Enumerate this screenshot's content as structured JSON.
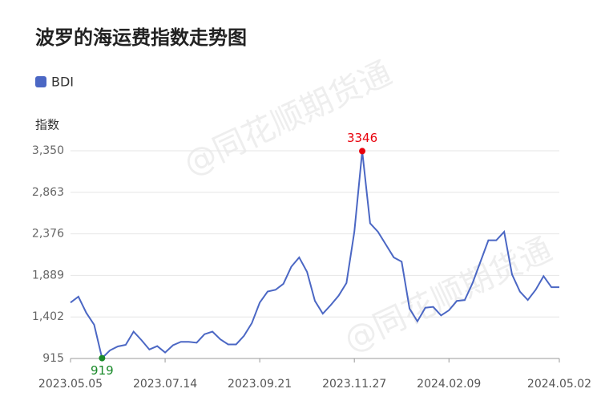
{
  "chart_data": {
    "type": "line",
    "title": "波罗的海运费指数走势图",
    "y_label": "指数",
    "watermark": "@同花顺期货通",
    "categories": [
      "2023.05.05",
      null,
      null,
      null,
      null,
      null,
      null,
      null,
      null,
      null,
      null,
      null,
      "2023.07.14",
      null,
      null,
      null,
      null,
      null,
      null,
      null,
      null,
      null,
      null,
      null,
      "2023.09.21",
      null,
      null,
      null,
      null,
      null,
      null,
      null,
      null,
      null,
      null,
      null,
      "2023.11.27",
      null,
      null,
      null,
      null,
      null,
      null,
      null,
      null,
      null,
      null,
      null,
      "2024.02.09",
      null,
      null,
      null,
      null,
      null,
      null,
      null,
      null,
      null,
      null,
      null,
      null,
      null,
      "2024.05.02"
    ],
    "series": [
      {
        "name": "BDI",
        "color": "#4b67c4",
        "values": [
          1570,
          1640,
          1450,
          1310,
          919,
          1010,
          1056,
          1075,
          1230,
          1130,
          1020,
          1060,
          985,
          1070,
          1110,
          1110,
          1100,
          1200,
          1230,
          1140,
          1080,
          1080,
          1180,
          1330,
          1570,
          1700,
          1720,
          1790,
          1990,
          2100,
          1930,
          1590,
          1440,
          1540,
          1650,
          1800,
          2400,
          3346,
          2500,
          2400,
          2250,
          2100,
          2050,
          1500,
          1350,
          1510,
          1520,
          1420,
          1480,
          1590,
          1600,
          1800,
          2050,
          2300,
          2300,
          2400,
          1900,
          1700,
          1600,
          1720,
          1880,
          1750,
          1750
        ]
      }
    ],
    "max_color": "#e8000b",
    "min_color": "#1a8a2a",
    "ylim": [
      915,
      3350
    ],
    "yticks": [
      915,
      {
        "value": 1402,
        "label": "1,402"
      },
      {
        "value": 1889,
        "label": "1,889"
      },
      {
        "value": 2376,
        "label": "2,376"
      },
      {
        "value": 2863,
        "label": "2,863"
      },
      {
        "value": 3350,
        "label": "3,350"
      }
    ],
    "grid": true
  }
}
